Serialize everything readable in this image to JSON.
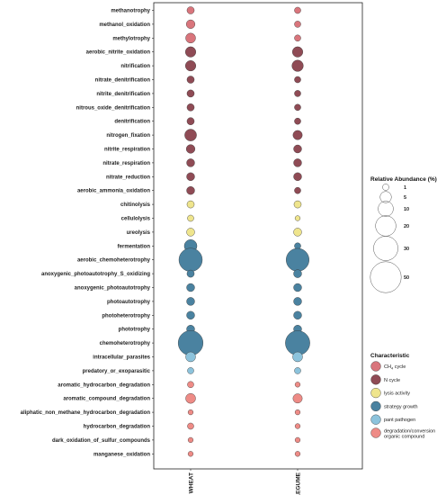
{
  "chart_data": {
    "type": "scatter",
    "subtype": "bubble",
    "categories": [
      "methanotrophy",
      "methanol_oxidation",
      "methylotrophy",
      "aerobic_nitrite_oxidation",
      "nitrification",
      "nitrate_denitrification",
      "nitrite_denitrification",
      "nitrous_oxide_denitrification",
      "denitrification",
      "nitrogen_fixation",
      "nitrite_respiration",
      "nitrate_respiration",
      "nitrate_reduction",
      "aerobic_ammonia_oxidation",
      "chitinolysis",
      "cellulolysis",
      "ureolysis",
      "fermentation",
      "aerobic_chemoheterotrophy",
      "anoxygenic_photoautotrophy_S_oxidizing",
      "anoxygenic_photoautotrophy",
      "photoautotrophy",
      "photoheterotrophy",
      "phototrophy",
      "chemoheterotrophy",
      "intracellular_parasites",
      "predatory_or_exoparasitic",
      "aromatic_hydrocarbon_degradation",
      "aromatic_compound_degradation",
      "aliphatic_non_methane_hydrocarbon_degradation",
      "hydrocarbon_degradation",
      "dark_oxidation_of_sulfur_compounds",
      "manganese_oxidation"
    ],
    "category_group": [
      "CH4",
      "CH4",
      "CH4",
      "N",
      "N",
      "N",
      "N",
      "N",
      "N",
      "N",
      "N",
      "N",
      "N",
      "N",
      "lysis",
      "lysis",
      "lysis",
      "strategy",
      "strategy",
      "strategy",
      "strategy",
      "strategy",
      "strategy",
      "strategy",
      "strategy",
      "pathogen",
      "pathogen",
      "degradation",
      "degradation",
      "degradation",
      "degradation",
      "degradation",
      "degradation"
    ],
    "x": [
      "WHEAT",
      "LEGUME"
    ],
    "series": [
      {
        "name": "WHEAT",
        "values": [
          1.5,
          2.5,
          3.5,
          4,
          4,
          1.5,
          1.5,
          1.5,
          1.5,
          5.5,
          2.5,
          2,
          2,
          2,
          1.5,
          1,
          2,
          6.5,
          27,
          1.5,
          2,
          2,
          2,
          2,
          31,
          3.5,
          1,
          1,
          3.5,
          0.5,
          1,
          0.5,
          0.5
        ]
      },
      {
        "name": "LEGUME",
        "values": [
          1,
          1,
          1,
          4,
          5,
          1,
          1,
          1,
          1,
          3,
          2,
          2,
          2,
          1,
          1.5,
          0.5,
          2,
          1,
          26,
          2,
          2,
          2,
          2,
          2,
          30,
          3.5,
          1,
          0.5,
          3,
          0.5,
          0.5,
          0.5,
          0.5
        ]
      }
    ],
    "size_legend": {
      "title": "Relative Abundance (%)",
      "values": [
        1,
        5,
        10,
        20,
        30,
        50
      ],
      "labels": [
        "1",
        "5",
        "10",
        "20",
        "30",
        "50"
      ]
    },
    "color_legend": {
      "title": "Characteristic",
      "items": [
        {
          "key": "CH4",
          "label_main": "CH",
          "label_sub": "4",
          "label_tail": " cycle",
          "color": "#d9757c"
        },
        {
          "key": "N",
          "label_main": "N cycle",
          "label_sub": "",
          "label_tail": "",
          "color": "#8f4b55"
        },
        {
          "key": "lysis",
          "label_main": "lysis activity",
          "label_sub": "",
          "label_tail": "",
          "color": "#efe58d"
        },
        {
          "key": "strategy",
          "label_main": "strategy growth",
          "label_sub": "",
          "label_tail": "",
          "color": "#4a82a0"
        },
        {
          "key": "pathogen",
          "label_main": "pant pathogen",
          "label_sub": "",
          "label_tail": "",
          "color": "#8cc3dc"
        },
        {
          "key": "degradation",
          "label_main": "degradation/conversion",
          "label_sub": "",
          "label_tail": "",
          "label_line2": "organic compound",
          "color": "#ee8b86"
        }
      ]
    },
    "grid": false
  }
}
